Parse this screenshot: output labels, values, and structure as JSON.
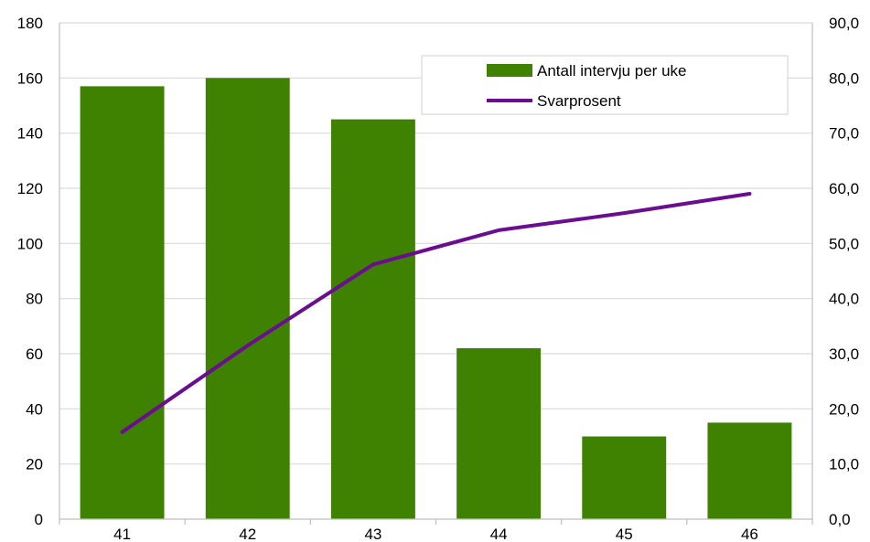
{
  "chart_data": {
    "type": "bar",
    "categories": [
      "41",
      "42",
      "43",
      "44",
      "45",
      "46"
    ],
    "series": [
      {
        "name": "Antall intervju per uke",
        "type": "bar",
        "axis": "left",
        "color": "#3f8100",
        "values": [
          157,
          160,
          145,
          62,
          30,
          35
        ]
      },
      {
        "name": "Svarprosent",
        "type": "line",
        "axis": "right",
        "color": "#6a0d91",
        "values": [
          15.8,
          31.5,
          46.2,
          52.4,
          55.5,
          59.0
        ]
      }
    ],
    "y_left": {
      "range": [
        0,
        180
      ],
      "ticks": [
        "0",
        "20",
        "40",
        "60",
        "80",
        "100",
        "120",
        "140",
        "160",
        "180"
      ]
    },
    "y_right": {
      "range": [
        0,
        90
      ],
      "ticks": [
        "0,0",
        "10,0",
        "20,0",
        "30,0",
        "40,0",
        "50,0",
        "60,0",
        "70,0",
        "80,0",
        "90,0"
      ]
    },
    "grid": "horizontal",
    "legend_position": "top-right",
    "title": "",
    "xlabel": "",
    "ylabel": ""
  }
}
